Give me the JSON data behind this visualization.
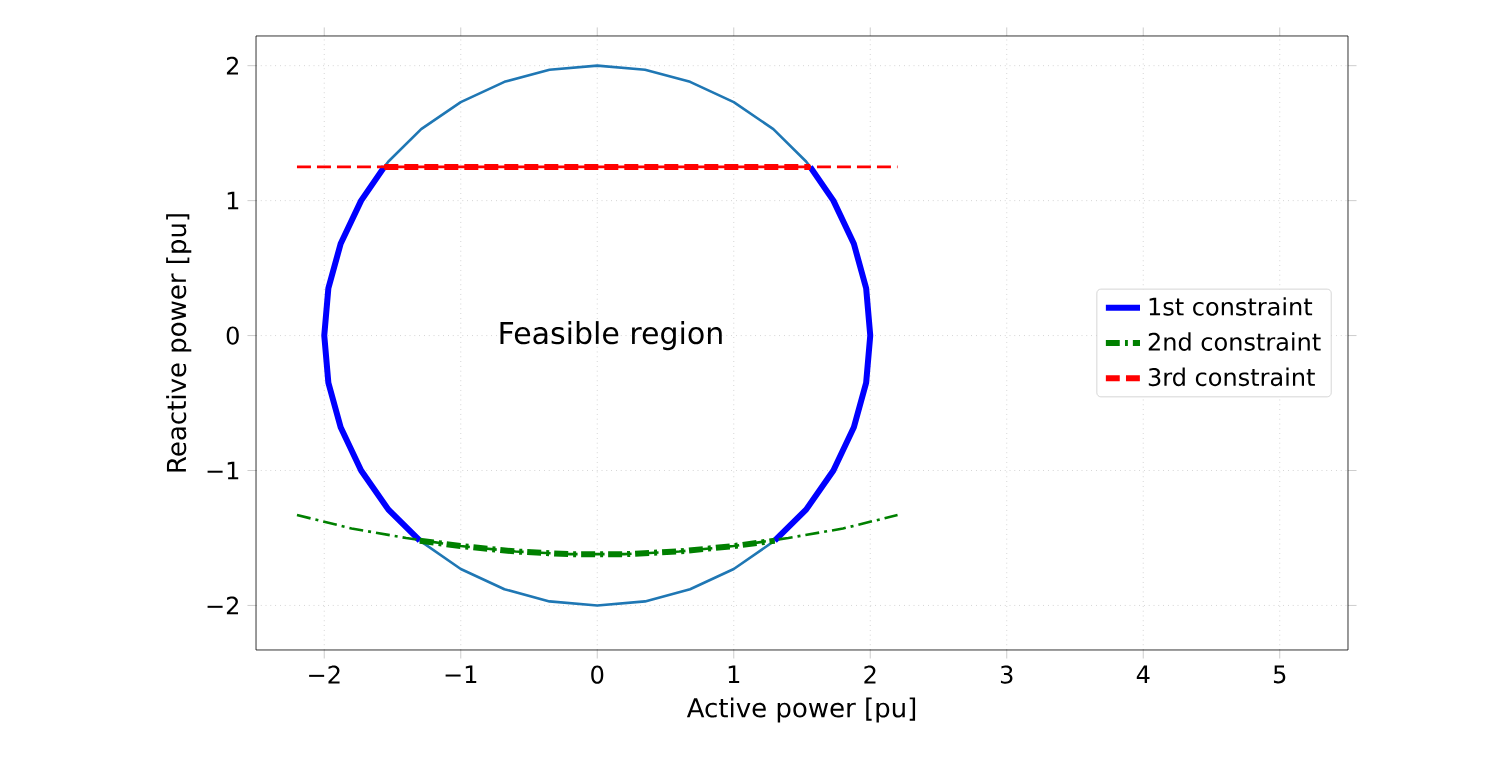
{
  "chart_data": {
    "type": "line",
    "xlabel": "Active power [pu]",
    "ylabel": "Reactive power [pu]",
    "xlim": [
      -2.5,
      5.5
    ],
    "ylim": [
      -2.33,
      2.22
    ],
    "xticks": [
      {
        "value": -2,
        "label": "−2"
      },
      {
        "value": -1,
        "label": "−1"
      },
      0,
      1,
      2,
      3,
      4,
      5
    ],
    "yticks": [
      {
        "value": -2,
        "label": "−2"
      },
      {
        "value": -1,
        "label": "−1"
      },
      0,
      1,
      2
    ],
    "grid": true,
    "legend": "right",
    "annotations": [
      "Feasible region"
    ],
    "series": [
      {
        "color": "#1f77b4",
        "line_style": "solid",
        "x": [
          -1.56,
          -1.53,
          -1.29,
          -1.0,
          -0.68,
          -0.35,
          0,
          0.35,
          0.68,
          1.0,
          1.29,
          1.53,
          1.56
        ],
        "values": [
          1.25,
          1.29,
          1.53,
          1.73,
          1.88,
          1.97,
          2,
          1.97,
          1.88,
          1.73,
          1.53,
          1.29,
          1.25
        ]
      },
      {
        "color": "#1f77b4",
        "line_style": "solid",
        "x": [
          -1.3,
          -1.0,
          -0.68,
          -0.35,
          0,
          0.35,
          0.68,
          1.0,
          1.3
        ],
        "values": [
          -1.52,
          -1.73,
          -1.88,
          -1.97,
          -2,
          -1.97,
          -1.88,
          -1.73,
          -1.52
        ]
      },
      {
        "name": "1st constraint",
        "color": "#0000ff",
        "line_style": "solid",
        "x": [
          1.56,
          1.73,
          1.88,
          1.97,
          2,
          1.97,
          1.88,
          1.73,
          1.53,
          1.3,
          null,
          -1.3,
          -1.53,
          -1.73,
          -1.88,
          -1.97,
          -2,
          -1.97,
          -1.88,
          -1.73,
          -1.56
        ],
        "values": [
          1.25,
          1.0,
          0.68,
          0.35,
          0,
          -0.35,
          -0.68,
          -1.0,
          -1.29,
          -1.52,
          null,
          -1.52,
          -1.29,
          -1.0,
          -0.68,
          -0.35,
          0,
          0.35,
          0.68,
          1.0,
          1.25
        ]
      },
      {
        "color": "#008000",
        "line_style": "dashdot",
        "x": [
          -2.2,
          -1.8,
          -1.4,
          -1.0,
          -0.6,
          -0.2,
          0.2,
          0.6,
          1.0,
          1.4,
          1.8,
          2.2
        ],
        "values": [
          -1.33,
          -1.43,
          -1.5,
          -1.56,
          -1.6,
          -1.62,
          -1.62,
          -1.6,
          -1.56,
          -1.5,
          -1.43,
          -1.33
        ]
      },
      {
        "name": "2nd constraint",
        "color": "#008000",
        "line_style": "dashdot",
        "x": [
          -1.3,
          -1.0,
          -0.6,
          -0.2,
          0.2,
          0.6,
          1.0,
          1.3
        ],
        "values": [
          -1.52,
          -1.56,
          -1.6,
          -1.62,
          -1.62,
          -1.6,
          -1.56,
          -1.52
        ]
      },
      {
        "color": "#ff0000",
        "line_style": "dashed",
        "x": [
          -2.2,
          2.2
        ],
        "values": [
          1.25,
          1.25
        ]
      },
      {
        "name": "3rd constraint",
        "color": "#ff0000",
        "line_style": "dashed",
        "x": [
          -1.56,
          1.56
        ],
        "values": [
          1.25,
          1.25
        ]
      }
    ]
  }
}
